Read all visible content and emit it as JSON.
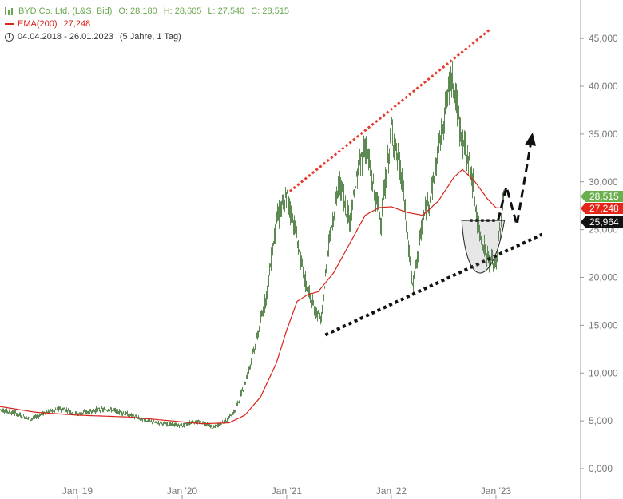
{
  "legend": {
    "title": "BYD Co. Ltd. (L&S, Bid)",
    "open": "O: 28,180",
    "high": "H: 28,605",
    "low": "L: 27,540",
    "close": "C: 28,515",
    "ema_label": "EMA(200)",
    "ema_value": "27,248",
    "date_range": "04.04.2018 - 26.01.2023",
    "period": "(5 Jahre, 1 Tag)"
  },
  "colors": {
    "candle": "#5d8a52",
    "ema": "#d8231a",
    "last_price_tag": "#6ab04c",
    "ema_tag": "#e3251a",
    "level_tag": "#111111"
  },
  "chart_data": {
    "type": "line",
    "title": "",
    "xlabel": "",
    "ylabel": "",
    "ylim": [
      -2500,
      48000
    ],
    "grid": false,
    "y_ticks": [
      "0,000",
      "5,000",
      "10,000",
      "15,000",
      "20,000",
      "25,000",
      "30,000",
      "35,000",
      "40,000",
      "45,000"
    ],
    "x_ticks": [
      "Jan '19",
      "Jan '20",
      "Jan '21",
      "Jan '22",
      "Jan '23"
    ],
    "price_tags": [
      "28,515",
      "27,248",
      "25,964"
    ],
    "series": [
      {
        "name": "BYD Co. Ltd. (L&S, Bid)",
        "x": [
          2018.26,
          2018.4,
          2018.55,
          2018.7,
          2018.85,
          2019.0,
          2019.15,
          2019.3,
          2019.45,
          2019.6,
          2019.75,
          2019.9,
          2020.0,
          2020.1,
          2020.2,
          2020.3,
          2020.42,
          2020.5,
          2020.6,
          2020.7,
          2020.8,
          2020.9,
          2021.0,
          2021.08,
          2021.16,
          2021.25,
          2021.33,
          2021.4,
          2021.5,
          2021.6,
          2021.68,
          2021.75,
          2021.83,
          2021.9,
          2022.0,
          2022.1,
          2022.2,
          2022.3,
          2022.4,
          2022.5,
          2022.58,
          2022.66,
          2022.75,
          2022.83,
          2022.92,
          2023.0,
          2023.07
        ],
        "values": [
          6200,
          5800,
          5200,
          5900,
          6300,
          5700,
          6100,
          6200,
          5800,
          5200,
          4800,
          4600,
          4500,
          4900,
          4800,
          4300,
          5100,
          6000,
          9000,
          13000,
          18000,
          26000,
          28500,
          25000,
          20000,
          17000,
          15500,
          24000,
          30000,
          26000,
          31000,
          34000,
          29000,
          26000,
          35500,
          30000,
          19000,
          26000,
          30000,
          37000,
          41500,
          35000,
          32000,
          25000,
          22000,
          21500,
          28515
        ]
      },
      {
        "name": "EMA(200)",
        "x": [
          2018.26,
          2018.6,
          2019.0,
          2019.5,
          2019.9,
          2020.2,
          2020.45,
          2020.6,
          2020.75,
          2020.9,
          2021.0,
          2021.1,
          2021.2,
          2021.3,
          2021.45,
          2021.6,
          2021.75,
          2021.88,
          2022.0,
          2022.15,
          2022.3,
          2022.45,
          2022.6,
          2022.68,
          2022.8,
          2022.92,
          2023.0,
          2023.07
        ],
        "values": [
          6500,
          5900,
          5600,
          5400,
          5000,
          4700,
          4800,
          5600,
          7500,
          11000,
          14500,
          17500,
          18200,
          18500,
          20500,
          23500,
          26500,
          27300,
          27400,
          26800,
          26500,
          28000,
          30500,
          31300,
          30000,
          28200,
          27300,
          27248
        ]
      }
    ],
    "annotations": [
      {
        "kind": "upper-trendline",
        "color": "#e53d2e",
        "x": [
          2021.03,
          2022.95
        ],
        "values": [
          29000,
          46000
        ]
      },
      {
        "kind": "lower-trendline",
        "color": "#111111",
        "x": [
          2021.37,
          2023.44
        ],
        "values": [
          14000,
          24500
        ]
      },
      {
        "kind": "neckline",
        "color": "#111111",
        "x": [
          2022.75,
          2023.02
        ],
        "values": [
          25964,
          25964
        ]
      },
      {
        "kind": "projection-arrow",
        "color": "#111111",
        "x": [
          2023.02,
          2023.1,
          2023.2,
          2023.34
        ],
        "values": [
          25964,
          29500,
          25500,
          34500
        ]
      }
    ]
  }
}
